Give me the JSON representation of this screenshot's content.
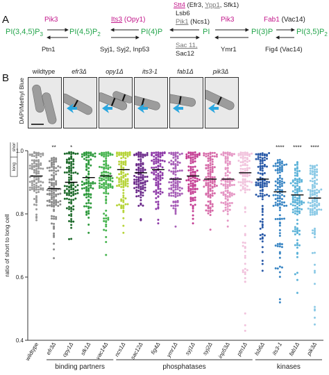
{
  "panel_a": {
    "letter": "A",
    "species": [
      {
        "text": "PI(3,4,5)P",
        "sub": "3"
      },
      {
        "text": "PI(4,5)P",
        "sub": "2"
      },
      {
        "text": "PI(4)P",
        "sub": ""
      },
      {
        "text": "PI",
        "sub": ""
      },
      {
        "text": "PI(3)P",
        "sub": ""
      },
      {
        "text": "PI(3,5)P",
        "sub": "2"
      }
    ],
    "kinase_pik3_left": "Pik3",
    "phos_ptn1": "Ptn1",
    "kinase_its3": "Its3",
    "kinase_its3_paren": "(Opy1)",
    "phos_syj": "Syj1, Syj2, Inp53",
    "kinase_stt4": "Stt4",
    "stt4_paren_open": "(Efr3, ",
    "stt4_ypp1": "Ypp1",
    "stt4_sfk1": ", Sfk1)",
    "lsb6": "Lsb6",
    "pik1": "Pik1",
    "pik1_paren": "(Ncs1)",
    "sac11": "Sac 11,",
    "sac12": "Sac12",
    "kinase_pik3_right": "Pik3",
    "phos_ymr1": "Ymr1",
    "kinase_fab1": "Fab1",
    "fab1_paren": "(Vac14)",
    "phos_fig4": "Fig4 (Vac14)"
  },
  "panel_b": {
    "letter": "B",
    "micrograph_labels": [
      "wildtype",
      "efr3Δ",
      "opy1Δ",
      "its3-1",
      "fab1Δ",
      "pik3Δ"
    ],
    "stain_label": "DAPI/Methyl Blue"
  },
  "chart_data": {
    "type": "scatter",
    "ylabel": "ratio of short to long cell",
    "ylabel_icon_short": "short",
    "ylabel_icon_long": "long",
    "ylim": [
      0.4,
      1.0
    ],
    "yticks": [
      "0.4",
      "0.6",
      "0.8",
      "1.0"
    ],
    "categories": [
      "wildtype",
      "efr3Δ",
      "opy1Δ",
      "sfk1Δ",
      "vac14Δ",
      "ncs1Δ",
      "sac12Δ",
      "fig4Δ",
      "ymr1Δ",
      "syj1Δ",
      "syj2Δ",
      "inp53Δ",
      "ptn1Δ",
      "lsb6Δ",
      "its3-1",
      "fab1Δ",
      "pik3Δ"
    ],
    "colors": [
      "#9a9a9a",
      "#8a8a8a",
      "#1f6b2c",
      "#2e9a3d",
      "#45b34d",
      "#b7d43a",
      "#6b2a8a",
      "#8e3aa8",
      "#a860b8",
      "#c43d93",
      "#d66aa8",
      "#e596c4",
      "#f1c2dc",
      "#2a5aa8",
      "#3a86c4",
      "#5ab2d8",
      "#8ccae6"
    ],
    "medians": [
      0.92,
      0.88,
      0.9,
      0.915,
      0.92,
      0.94,
      0.93,
      0.94,
      0.91,
      0.92,
      0.91,
      0.91,
      0.93,
      0.91,
      0.87,
      0.86,
      0.85
    ],
    "min_values": [
      0.78,
      0.66,
      0.72,
      0.74,
      0.67,
      0.74,
      0.78,
      0.77,
      0.76,
      0.77,
      0.75,
      0.76,
      0.43,
      0.62,
      0.52,
      0.55,
      0.45
    ],
    "significance": [
      "",
      "**",
      "*",
      "",
      "",
      "",
      "",
      "",
      "",
      "",
      "",
      "",
      "",
      "",
      "****",
      "****",
      "****"
    ],
    "groups": [
      {
        "label": "binding partners",
        "from": 1,
        "to": 4
      },
      {
        "label": "phosphatases",
        "from": 5,
        "to": 12
      },
      {
        "label": "kinases",
        "from": 13,
        "to": 16
      }
    ]
  }
}
